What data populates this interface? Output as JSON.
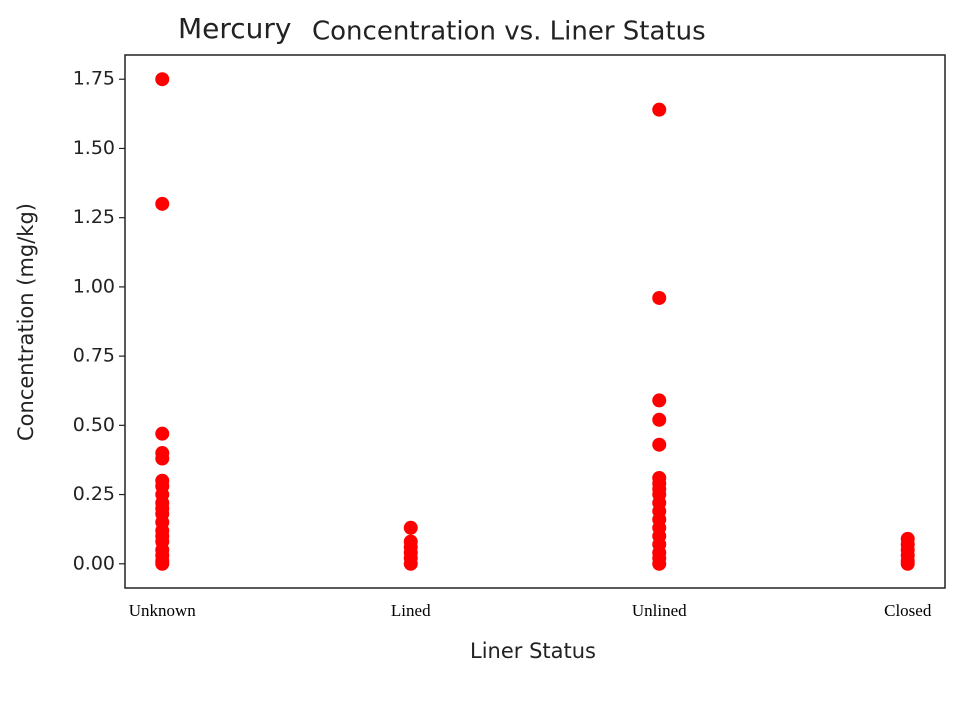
{
  "chart_data": {
    "type": "scatter",
    "title": [
      "Mercury",
      "Concentration vs. Liner Status"
    ],
    "x_label": "Liner Status",
    "y_label": "Concentration (mg/kg)",
    "categories": [
      "Unknown",
      "Lined",
      "Unlined",
      "Closed"
    ],
    "color": "#ff0000",
    "values": [
      [
        1.75,
        1.3,
        0.47,
        0.4,
        0.38,
        0.3,
        0.28,
        0.25,
        0.22,
        0.2,
        0.18,
        0.15,
        0.12,
        0.1,
        0.08,
        0.05,
        0.03,
        0.01,
        0.0
      ],
      [
        0.13,
        0.08,
        0.06,
        0.04,
        0.02,
        0.0
      ],
      [
        1.64,
        0.96,
        0.59,
        0.52,
        0.43,
        0.31,
        0.29,
        0.27,
        0.25,
        0.22,
        0.19,
        0.16,
        0.13,
        0.1,
        0.07,
        0.04,
        0.02,
        0.0
      ],
      [
        0.09,
        0.07,
        0.05,
        0.03,
        0.01,
        0.0
      ]
    ],
    "xlim": [
      -0.15,
      3.15
    ],
    "ylim": [
      -0.0875,
      1.8375
    ],
    "yticks": [
      {
        "value": 0,
        "label": "0.00"
      },
      {
        "value": 0.25,
        "label": "0.25"
      },
      {
        "value": 0.5,
        "label": "0.50"
      },
      {
        "value": 0.75,
        "label": "0.75"
      },
      {
        "value": 1,
        "label": "1.00"
      },
      {
        "value": 1.25,
        "label": "1.25"
      },
      {
        "value": 1.5,
        "label": "1.50"
      },
      {
        "value": 1.75,
        "label": "1.75"
      }
    ]
  }
}
